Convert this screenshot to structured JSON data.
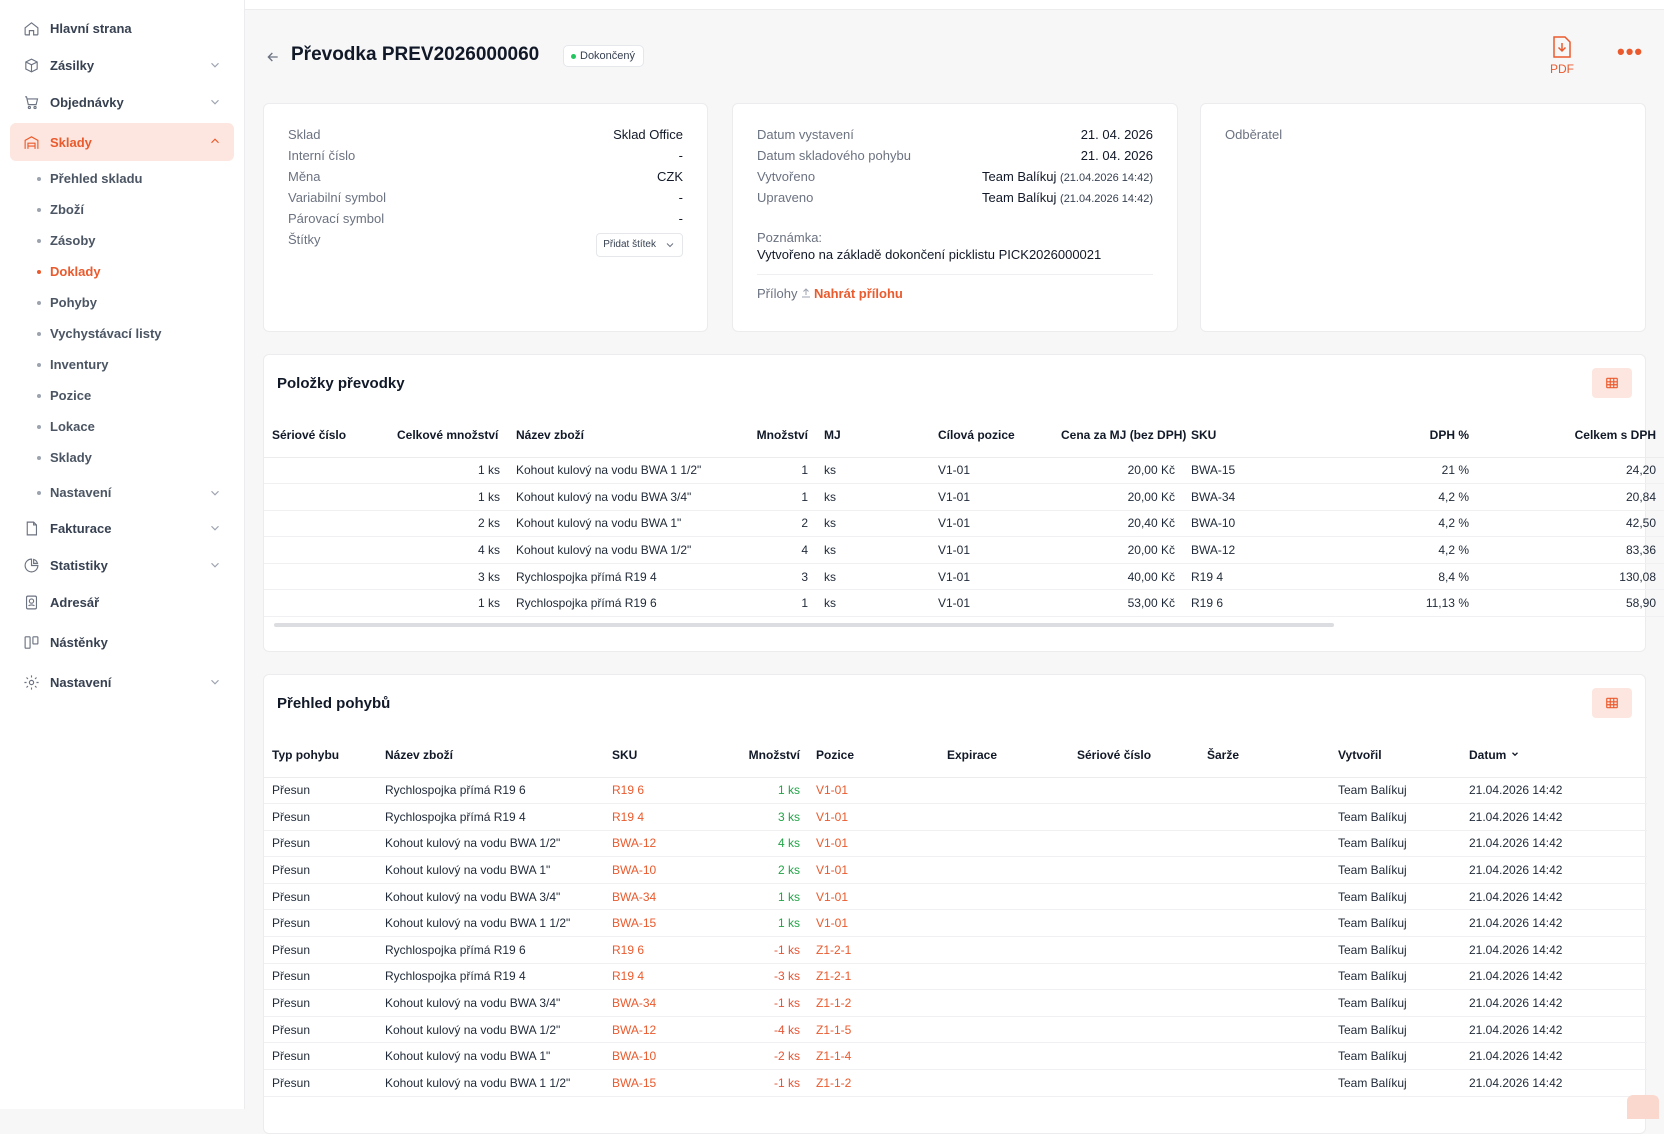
{
  "sidebar": {
    "items": [
      {
        "label": "Hlavní strana",
        "icon": "home-icon",
        "has_chevron": false
      },
      {
        "label": "Zásilky",
        "icon": "package-icon",
        "has_chevron": true
      },
      {
        "label": "Objednávky",
        "icon": "cart-icon",
        "has_chevron": true
      },
      {
        "label": "Sklady",
        "icon": "warehouse-icon",
        "has_chevron": true,
        "active": true
      }
    ],
    "sub_items": [
      {
        "label": "Přehled skladu"
      },
      {
        "label": "Zboží"
      },
      {
        "label": "Zásoby"
      },
      {
        "label": "Doklady",
        "active": true
      },
      {
        "label": "Pohyby"
      },
      {
        "label": "Vychystávací listy"
      },
      {
        "label": "Inventury"
      },
      {
        "label": "Pozice"
      },
      {
        "label": "Lokace"
      },
      {
        "label": "Sklady"
      },
      {
        "label": "Nastavení",
        "has_chevron": true
      }
    ],
    "bottom_items": [
      {
        "label": "Fakturace",
        "icon": "invoice-icon",
        "has_chevron": true
      },
      {
        "label": "Statistiky",
        "icon": "stats-icon",
        "has_chevron": true
      },
      {
        "label": "Adresář",
        "icon": "contacts-icon",
        "has_chevron": false
      },
      {
        "label": "Nástěnky",
        "icon": "boards-icon",
        "has_chevron": false
      },
      {
        "label": "Nastavení",
        "icon": "settings-icon",
        "has_chevron": true
      }
    ]
  },
  "header": {
    "title": "Převodka PREV2026000060",
    "status": "Dokončený",
    "status_color": "#22c55e",
    "pdf_label": "PDF",
    "more_label": "•••"
  },
  "info_left": [
    {
      "label": "Sklad",
      "value": "Sklad Office"
    },
    {
      "label": "Interní číslo",
      "value": "-"
    },
    {
      "label": "Měna",
      "value": "CZK"
    },
    {
      "label": "Variabilní symbol",
      "value": "-"
    },
    {
      "label": "Párovací symbol",
      "value": "-"
    },
    {
      "label": "Štítky",
      "value": ""
    }
  ],
  "tag_button": "Přidat štítek",
  "info_middle": {
    "rows": [
      {
        "label": "Datum vystavení",
        "value": "21. 04. 2026",
        "small": ""
      },
      {
        "label": "Datum skladového pohybu",
        "value": "21. 04. 2026",
        "small": ""
      },
      {
        "label": "Vytvořeno",
        "value": "Team Balíkuj ",
        "small": "(21.04.2026 14:42)"
      },
      {
        "label": "Upraveno",
        "value": "Team Balíkuj ",
        "small": "(21.04.2026 14:42)"
      }
    ],
    "note_label": "Poznámka:",
    "note_text": "Vytvořeno na základě dokončení picklistu PICK2026000021",
    "attachments_label": "Přílohy",
    "upload_label": "Nahrát přílohu"
  },
  "info_right": {
    "label": "Odběratel"
  },
  "items_section": {
    "title": "Položky převodky",
    "columns": [
      "Sériové číslo",
      "Celkové množství",
      "Název zboží",
      "Množství",
      "MJ",
      "Cílová pozice",
      "Cena za MJ (bez DPH)",
      "SKU",
      "DPH %",
      "Celkem s DPH"
    ],
    "rows": [
      [
        "",
        "1 ks",
        "Kohout kulový na vodu BWA 1 1/2\"",
        "1",
        "ks",
        "V1-01",
        "20,00 Kč",
        "BWA-15",
        "21 %",
        "24,20"
      ],
      [
        "",
        "1 ks",
        "Kohout kulový na vodu BWA 3/4\"",
        "1",
        "ks",
        "V1-01",
        "20,00 Kč",
        "BWA-34",
        "4,2 %",
        "20,84"
      ],
      [
        "",
        "2 ks",
        "Kohout kulový na vodu BWA 1\"",
        "2",
        "ks",
        "V1-01",
        "20,40 Kč",
        "BWA-10",
        "4,2 %",
        "42,50"
      ],
      [
        "",
        "4 ks",
        "Kohout kulový na vodu BWA 1/2\"",
        "4",
        "ks",
        "V1-01",
        "20,00 Kč",
        "BWA-12",
        "4,2 %",
        "83,36"
      ],
      [
        "",
        "3 ks",
        "Rychlospojka přímá R19 4",
        "3",
        "ks",
        "V1-01",
        "40,00 Kč",
        "R19 4",
        "8,4 %",
        "130,08"
      ],
      [
        "",
        "1 ks",
        "Rychlospojka přímá R19 6",
        "1",
        "ks",
        "V1-01",
        "53,00 Kč",
        "R19 6",
        "11,13 %",
        "58,90"
      ]
    ]
  },
  "movements_section": {
    "title": "Přehled pohybů",
    "columns": [
      "Typ pohybu",
      "Název zboží",
      "SKU",
      "Množství",
      "Pozice",
      "Expirace",
      "Sériové číslo",
      "Šarže",
      "Vytvořil",
      "Datum"
    ],
    "rows": [
      [
        "Přesun",
        "Rychlospojka přímá R19 6",
        "R19 6",
        "1 ks",
        "V1-01",
        "",
        "",
        "",
        "Team Balíkuj",
        "21.04.2026 14:42"
      ],
      [
        "Přesun",
        "Rychlospojka přímá R19 4",
        "R19 4",
        "3 ks",
        "V1-01",
        "",
        "",
        "",
        "Team Balíkuj",
        "21.04.2026 14:42"
      ],
      [
        "Přesun",
        "Kohout kulový na vodu BWA 1/2\"",
        "BWA-12",
        "4 ks",
        "V1-01",
        "",
        "",
        "",
        "Team Balíkuj",
        "21.04.2026 14:42"
      ],
      [
        "Přesun",
        "Kohout kulový na vodu BWA 1\"",
        "BWA-10",
        "2 ks",
        "V1-01",
        "",
        "",
        "",
        "Team Balíkuj",
        "21.04.2026 14:42"
      ],
      [
        "Přesun",
        "Kohout kulový na vodu BWA 3/4\"",
        "BWA-34",
        "1 ks",
        "V1-01",
        "",
        "",
        "",
        "Team Balíkuj",
        "21.04.2026 14:42"
      ],
      [
        "Přesun",
        "Kohout kulový na vodu BWA 1 1/2\"",
        "BWA-15",
        "1 ks",
        "V1-01",
        "",
        "",
        "",
        "Team Balíkuj",
        "21.04.2026 14:42"
      ],
      [
        "Přesun",
        "Rychlospojka přímá R19 6",
        "R19 6",
        "-1 ks",
        "Z1-2-1",
        "",
        "",
        "",
        "Team Balíkuj",
        "21.04.2026 14:42"
      ],
      [
        "Přesun",
        "Rychlospojka přímá R19 4",
        "R19 4",
        "-3 ks",
        "Z1-2-1",
        "",
        "",
        "",
        "Team Balíkuj",
        "21.04.2026 14:42"
      ],
      [
        "Přesun",
        "Kohout kulový na vodu BWA 3/4\"",
        "BWA-34",
        "-1 ks",
        "Z1-1-2",
        "",
        "",
        "",
        "Team Balíkuj",
        "21.04.2026 14:42"
      ],
      [
        "Přesun",
        "Kohout kulový na vodu BWA 1/2\"",
        "BWA-12",
        "-4 ks",
        "Z1-1-5",
        "",
        "",
        "",
        "Team Balíkuj",
        "21.04.2026 14:42"
      ],
      [
        "Přesun",
        "Kohout kulový na vodu BWA 1\"",
        "BWA-10",
        "-2 ks",
        "Z1-1-4",
        "",
        "",
        "",
        "Team Balíkuj",
        "21.04.2026 14:42"
      ],
      [
        "Přesun",
        "Kohout kulový na vodu BWA 1 1/2\"",
        "BWA-15",
        "-1 ks",
        "Z1-1-2",
        "",
        "",
        "",
        "Team Balíkuj",
        "21.04.2026 14:42"
      ]
    ],
    "sort_column": "Datum",
    "sort_direction": "descending"
  },
  "colors": {
    "accent": "#ea5a2d",
    "accent_soft": "#fde6df",
    "positive_qty": "#22a447",
    "negative_qty": "#e45434"
  }
}
